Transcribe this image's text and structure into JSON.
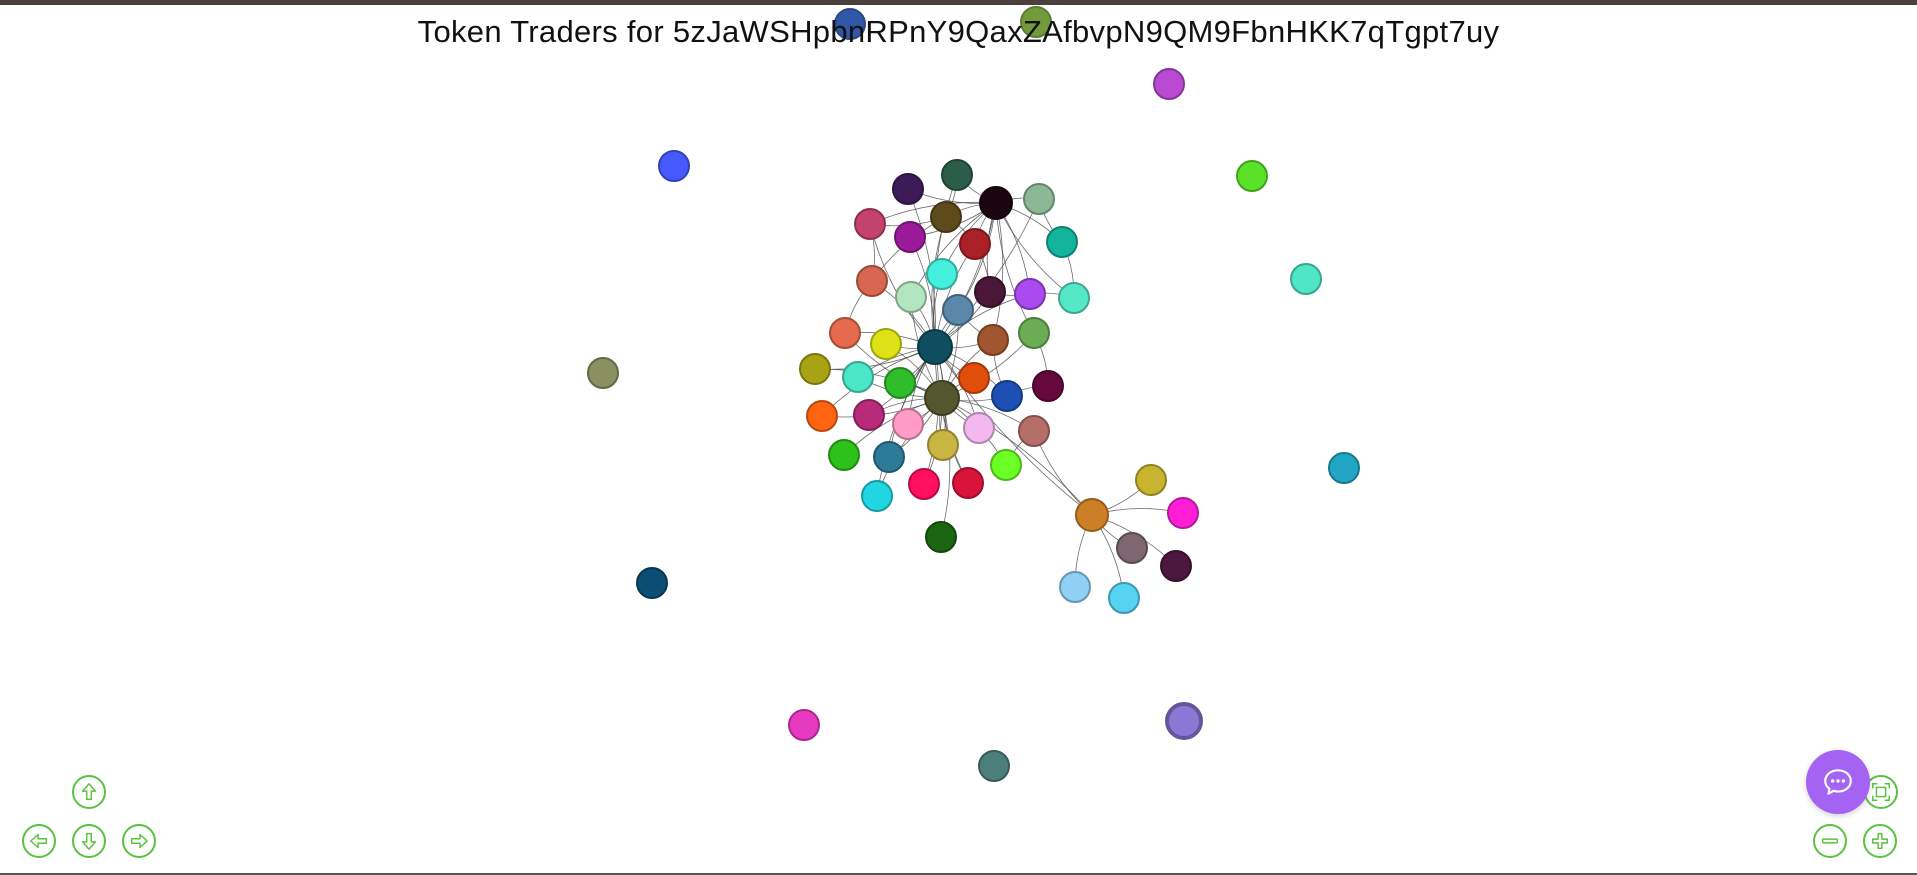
{
  "title": "Token Traders for 5zJaWSHpbnRPnY9QaxZAfbvpN9QM9FbnHKK7qTgpt7uy",
  "colors": {
    "edge": "#3a3a3a",
    "nav": "#5bc13f",
    "chat": "#a463f2"
  },
  "icons": {
    "nav_up": "arrow-up-icon",
    "nav_left": "arrow-left-icon",
    "nav_down": "arrow-down-icon",
    "nav_right": "arrow-right-icon",
    "zoom_out": "minus-icon",
    "zoom_in": "plus-icon",
    "fit": "fit-screen-icon",
    "chat": "chat-bubble-icon"
  },
  "nodes": [
    {
      "id": "h1",
      "color": "#0e4e5e"
    },
    {
      "id": "h2",
      "color": "#54562e"
    },
    {
      "id": "h3",
      "color": "#1a0510"
    },
    {
      "id": "h4",
      "color": "#cd7f25"
    },
    {
      "id": "n1",
      "color": "#2c5d4a"
    },
    {
      "id": "n2",
      "color": "#3e1a57"
    },
    {
      "id": "n3",
      "color": "#5e4a1a"
    },
    {
      "id": "n4",
      "color": "#8cb895"
    },
    {
      "id": "n5",
      "color": "#c4436e"
    },
    {
      "id": "n6",
      "color": "#9a1a99"
    },
    {
      "id": "n7",
      "color": "#aa2127"
    },
    {
      "id": "n8",
      "color": "#14b39e"
    },
    {
      "id": "n9",
      "color": "#d96650"
    },
    {
      "id": "n10",
      "color": "#44efdb"
    },
    {
      "id": "n11",
      "color": "#b3e5bf"
    },
    {
      "id": "n12",
      "color": "#5a87aa"
    },
    {
      "id": "n13",
      "color": "#4a1738"
    },
    {
      "id": "n14",
      "color": "#a94bef"
    },
    {
      "id": "n15",
      "color": "#55e8c7"
    },
    {
      "id": "n16",
      "color": "#e56a4e"
    },
    {
      "id": "n17",
      "color": "#dfe117"
    },
    {
      "id": "n18",
      "color": "#a2562f"
    },
    {
      "id": "n19",
      "color": "#6aad55"
    },
    {
      "id": "n20",
      "color": "#a9a314"
    },
    {
      "id": "n21",
      "color": "#4be5c8"
    },
    {
      "id": "n22",
      "color": "#2fbd2c"
    },
    {
      "id": "n23",
      "color": "#e14e0c"
    },
    {
      "id": "n24",
      "color": "#1d4fb5"
    },
    {
      "id": "n25",
      "color": "#65093d"
    },
    {
      "id": "n26",
      "color": "#ff6413"
    },
    {
      "id": "n27",
      "color": "#b82b7a"
    },
    {
      "id": "n28",
      "color": "#ff9cc6"
    },
    {
      "id": "n29",
      "color": "#f1b9ef"
    },
    {
      "id": "n30",
      "color": "#b66e68"
    },
    {
      "id": "n31",
      "color": "#2cc21a"
    },
    {
      "id": "n32",
      "color": "#2c7b99"
    },
    {
      "id": "n33",
      "color": "#c8b542"
    },
    {
      "id": "n34",
      "color": "#6bff23"
    },
    {
      "id": "n35",
      "color": "#20d6e0"
    },
    {
      "id": "n36",
      "color": "#ff0f5d"
    },
    {
      "id": "n37",
      "color": "#d9143b"
    },
    {
      "id": "n38",
      "color": "#1b6410"
    },
    {
      "id": "c1",
      "color": "#c8b42e"
    },
    {
      "id": "c2",
      "color": "#ff1ed6"
    },
    {
      "id": "c3",
      "color": "#7f6771"
    },
    {
      "id": "c4",
      "color": "#4a1840"
    },
    {
      "id": "c5",
      "color": "#90d0f5"
    },
    {
      "id": "c6",
      "color": "#55d3f0"
    },
    {
      "id": "i1",
      "color": "#4659ff"
    },
    {
      "id": "i2",
      "color": "#b94ad1"
    },
    {
      "id": "i3",
      "color": "#5ae128"
    },
    {
      "id": "i4",
      "color": "#4ee6c4"
    },
    {
      "id": "i5",
      "color": "#8b9063"
    },
    {
      "id": "i6",
      "color": "#20a6c4"
    },
    {
      "id": "i7",
      "color": "#0c4d73"
    },
    {
      "id": "i8",
      "color": "#e73ac1"
    },
    {
      "id": "i9",
      "color": "#8a78d5"
    },
    {
      "id": "i10",
      "color": "#4d7f7a"
    },
    {
      "id": "t1",
      "color": "#0d3a9a"
    },
    {
      "id": "t2",
      "color": "#5a8a1a"
    }
  ],
  "edges": [
    [
      "h1",
      "n1"
    ],
    [
      "h1",
      "n2"
    ],
    [
      "h1",
      "n3"
    ],
    [
      "h1",
      "n4"
    ],
    [
      "h1",
      "n5"
    ],
    [
      "h1",
      "n6"
    ],
    [
      "h1",
      "n7"
    ],
    [
      "h1",
      "n9"
    ],
    [
      "h1",
      "n10"
    ],
    [
      "h1",
      "n11"
    ],
    [
      "h1",
      "n12"
    ],
    [
      "h1",
      "n13"
    ],
    [
      "h1",
      "n14"
    ],
    [
      "h1",
      "n16"
    ],
    [
      "h1",
      "n17"
    ],
    [
      "h1",
      "n18"
    ],
    [
      "h1",
      "n20"
    ],
    [
      "h1",
      "n21"
    ],
    [
      "h1",
      "n22"
    ],
    [
      "h1",
      "n23"
    ],
    [
      "h1",
      "n24"
    ],
    [
      "h1",
      "n26"
    ],
    [
      "h1",
      "n27"
    ],
    [
      "h1",
      "n28"
    ],
    [
      "h1",
      "n29"
    ],
    [
      "h1",
      "n32"
    ],
    [
      "h1",
      "n33"
    ],
    [
      "h1",
      "n35"
    ],
    [
      "h1",
      "n36"
    ],
    [
      "h1",
      "n37"
    ],
    [
      "h1",
      "h2"
    ],
    [
      "h1",
      "h3"
    ],
    [
      "h2",
      "n16"
    ],
    [
      "h2",
      "n17"
    ],
    [
      "h2",
      "n18"
    ],
    [
      "h2",
      "n20"
    ],
    [
      "h2",
      "n21"
    ],
    [
      "h2",
      "n22"
    ],
    [
      "h2",
      "n23"
    ],
    [
      "h2",
      "n24"
    ],
    [
      "h2",
      "n26"
    ],
    [
      "h2",
      "n27"
    ],
    [
      "h2",
      "n28"
    ],
    [
      "h2",
      "n29"
    ],
    [
      "h2",
      "n30"
    ],
    [
      "h2",
      "n31"
    ],
    [
      "h2",
      "n32"
    ],
    [
      "h2",
      "n33"
    ],
    [
      "h2",
      "n34"
    ],
    [
      "h2",
      "n35"
    ],
    [
      "h2",
      "n36"
    ],
    [
      "h2",
      "n37"
    ],
    [
      "h2",
      "n38"
    ],
    [
      "h2",
      "n12"
    ],
    [
      "h2",
      "n11"
    ],
    [
      "h2",
      "n19"
    ],
    [
      "h3",
      "n2"
    ],
    [
      "h3",
      "n3"
    ],
    [
      "h3",
      "n4"
    ],
    [
      "h3",
      "n5"
    ],
    [
      "h3",
      "n6"
    ],
    [
      "h3",
      "n7"
    ],
    [
      "h3",
      "n8"
    ],
    [
      "h3",
      "n10"
    ],
    [
      "h3",
      "n12"
    ],
    [
      "h3",
      "n13"
    ],
    [
      "h3",
      "n14"
    ],
    [
      "h3",
      "n15"
    ],
    [
      "h3",
      "n18"
    ],
    [
      "h3",
      "n19"
    ],
    [
      "h3",
      "n1"
    ],
    [
      "h3",
      "n11"
    ],
    [
      "n3",
      "n5"
    ],
    [
      "n3",
      "n9"
    ],
    [
      "n3",
      "n7"
    ],
    [
      "n3",
      "n1"
    ],
    [
      "n5",
      "n9"
    ],
    [
      "n9",
      "n16"
    ],
    [
      "n7",
      "n13"
    ],
    [
      "n13",
      "n14"
    ],
    [
      "n14",
      "n15"
    ],
    [
      "n12",
      "n18"
    ],
    [
      "n19",
      "n25"
    ],
    [
      "n18",
      "n24"
    ],
    [
      "n24",
      "n25"
    ],
    [
      "n30",
      "n34"
    ],
    [
      "n8",
      "n15"
    ],
    [
      "n4",
      "n8"
    ],
    [
      "h4",
      "h1"
    ],
    [
      "h4",
      "h2"
    ],
    [
      "h4",
      "n30"
    ],
    [
      "h4",
      "c1"
    ],
    [
      "h4",
      "c2"
    ],
    [
      "h4",
      "c3"
    ],
    [
      "h4",
      "c4"
    ],
    [
      "h4",
      "c5"
    ],
    [
      "h4",
      "c6"
    ]
  ],
  "controls": {
    "nav_up": "move-up",
    "nav_left": "move-left",
    "nav_down": "move-down",
    "nav_right": "move-right",
    "zoom_out": "zoom-out",
    "zoom_in": "zoom-in",
    "fit": "fit"
  }
}
